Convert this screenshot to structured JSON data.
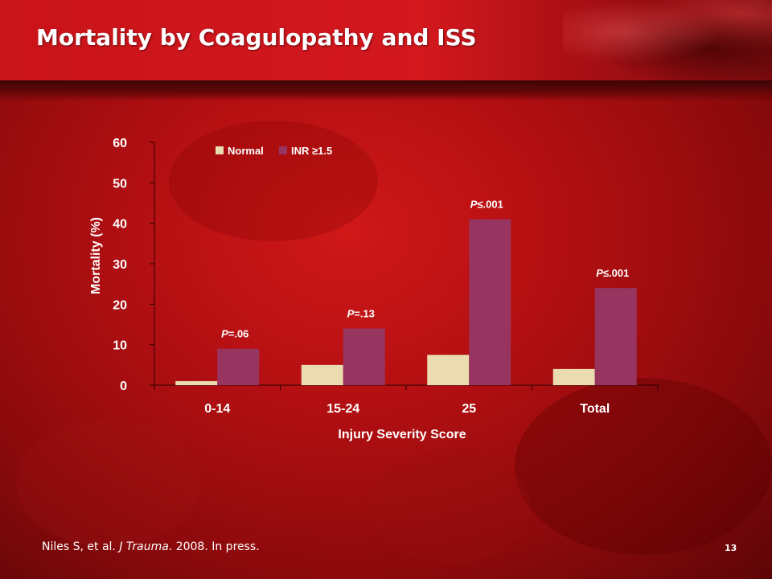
{
  "slide": {
    "title": "Mortality by Coagulopathy and ISS",
    "citation": {
      "authors": "Niles S, et al.",
      "journal": "J Trauma",
      "rest": ". 2008. In press."
    },
    "page_number": "13"
  },
  "chart_data": {
    "type": "bar",
    "categories": [
      "0-14",
      "15-24",
      "25",
      "Total"
    ],
    "series": [
      {
        "name": "Normal",
        "values": [
          1,
          5,
          7.5,
          4
        ],
        "color": "#eadcb0"
      },
      {
        "name": "INR ≥1.5",
        "values": [
          9,
          14,
          41,
          24
        ],
        "color": "#983460"
      }
    ],
    "annotations": [
      {
        "italic": "P",
        "rest": "=.06"
      },
      {
        "italic": "P",
        "rest": "=.13"
      },
      {
        "italic": "P",
        "rest": "≤.001"
      },
      {
        "italic": "P",
        "rest": "≤.001"
      }
    ],
    "xlabel": "Injury Severity Score",
    "ylabel": "Mortality (%)",
    "ylim": [
      0,
      60
    ],
    "yticks": [
      0,
      10,
      20,
      30,
      40,
      50,
      60
    ],
    "grid": false,
    "legend_position": "top-left"
  }
}
